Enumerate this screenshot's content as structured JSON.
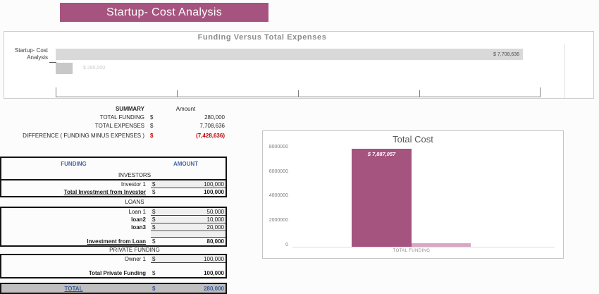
{
  "banner": {
    "title": "Startup- Cost Analysis",
    "color": "#a6547f"
  },
  "top_chart": {
    "title": "Funding Versus Total Expenses",
    "category_line1": "Startup- Cost",
    "category_line2": "Analysis",
    "expenses_label": "$ 7,708,636",
    "funding_label": "$ 280,000"
  },
  "summary": {
    "title": "SUMMARY",
    "amount_header": "Amount",
    "rows": [
      {
        "label": "TOTAL FUNDING",
        "currency": "$",
        "amount": "280,000"
      },
      {
        "label": "TOTAL EXPENSES",
        "currency": "$",
        "amount": "7,708,636"
      },
      {
        "label": "DIFFERENCE  ( FUNDING MINUS EXPENSES )",
        "currency": "$",
        "amount": "(7,428,636)"
      }
    ]
  },
  "funding_table": {
    "col_funding": "FUNDING",
    "col_amount": "AMOUNT",
    "sections": [
      {
        "name": "INVESTORS",
        "rows": [
          {
            "label": "Investor 1",
            "currency": "$",
            "amount": "100,000"
          },
          {
            "label": "Total Investment from Investor",
            "currency": "$",
            "amount": "100,000"
          }
        ]
      },
      {
        "name": "LOANS",
        "rows": [
          {
            "label": "Loan 1",
            "currency": "$",
            "amount": "50,000"
          },
          {
            "label": "loan2",
            "currency": "$",
            "amount": "10,000"
          },
          {
            "label": "loan3",
            "currency": "$",
            "amount": "20,000"
          },
          {
            "label": "Investment from Loan",
            "currency": "$",
            "amount": "80,000"
          }
        ]
      },
      {
        "name": "PRIVATE FUNDING",
        "rows": [
          {
            "label": "Owner 1",
            "currency": "$",
            "amount": "100,000"
          },
          {
            "label": "Total Private Funding",
            "currency": "$",
            "amount": "100,000"
          }
        ]
      }
    ],
    "total": {
      "label": "TOTAL",
      "currency": "$",
      "amount": "280,000"
    }
  },
  "total_cost_chart": {
    "title": "Total Cost",
    "bar_label": "$ 7,887,057",
    "x_label": "TOTAL FUNDING",
    "yticks": [
      "8000000",
      "6000000",
      "4000000",
      "2000000",
      "0"
    ]
  },
  "chart_data": [
    {
      "type": "bar",
      "orientation": "horizontal",
      "title": "Funding Versus Total Expenses",
      "categories": [
        "Startup- Cost Analysis"
      ],
      "series": [
        {
          "name": "Total Expenses",
          "value": 7708636,
          "label": "$ 7,708,636",
          "color": "#d9d9d9"
        },
        {
          "name": "Total Funding",
          "value": 280000,
          "label": "$ 280,000",
          "color": "#c8c8c8"
        }
      ],
      "xlim": [
        0,
        8000000
      ],
      "grid": false,
      "legend": "none"
    },
    {
      "type": "bar",
      "orientation": "vertical",
      "title": "Total Cost",
      "categories": [
        "TOTAL FUNDING"
      ],
      "series": [
        {
          "name": "Total Cost",
          "value": 7887057,
          "label": "$ 7,887,057",
          "color": "#a5537f"
        },
        {
          "name": "Total Funding",
          "value": 280000,
          "label": "",
          "color": "#d9a6c3"
        }
      ],
      "ylim": [
        0,
        8000000
      ],
      "yticks": [
        0,
        2000000,
        4000000,
        6000000,
        8000000
      ],
      "grid": false,
      "legend": "none"
    }
  ]
}
